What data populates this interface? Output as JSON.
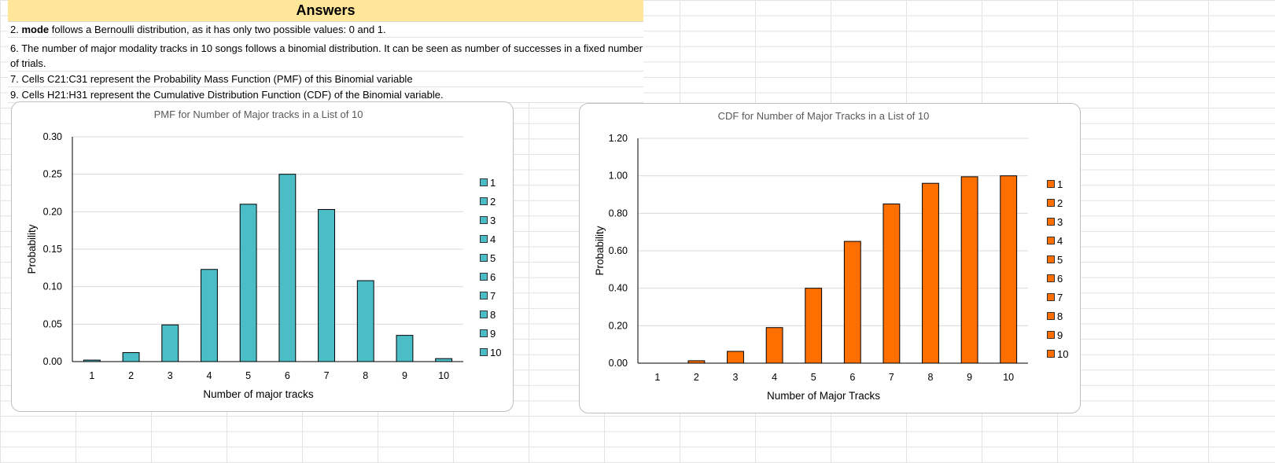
{
  "answers": {
    "title": "Answers",
    "line1_bold": "mode",
    "line1_prefix": "2. ",
    "line1_rest": " follows a Bernoulli distribution, as it has only two possible values: 0 and 1.",
    "line2": "6. The number of major modality tracks in 10 songs follows a binomial distribution. It can be seen as number of successes in a fixed number of trials.",
    "line3": "7. Cells C21:C31 represent the Probability Mass Function (PMF) of this Binomial variable",
    "line4": "9. Cells H21:H31 represent the Cumulative Distribution Function (CDF) of the Binomial variable."
  },
  "chart_data": [
    {
      "type": "bar",
      "title": "PMF for Number of Major tracks in a List of 10",
      "xlabel": "Number of major tracks",
      "ylabel": "Probability",
      "categories": [
        "1",
        "2",
        "3",
        "4",
        "5",
        "6",
        "7",
        "8",
        "9",
        "10"
      ],
      "values": [
        0.002,
        0.012,
        0.049,
        0.123,
        0.21,
        0.25,
        0.203,
        0.108,
        0.035,
        0.004
      ],
      "ylim": [
        0,
        0.3
      ],
      "yticks": [
        "0.00",
        "0.05",
        "0.10",
        "0.15",
        "0.20",
        "0.25",
        "0.30"
      ],
      "color": "#4bbdc6",
      "legend": [
        "1",
        "2",
        "3",
        "4",
        "5",
        "6",
        "7",
        "8",
        "9",
        "10"
      ],
      "legend_position": "right",
      "grid": true
    },
    {
      "type": "bar",
      "title": "CDF for Number of Major Tracks in a List of 10",
      "xlabel": "Number of Major Tracks",
      "ylabel": "Probability",
      "categories": [
        "1",
        "2",
        "3",
        "4",
        "5",
        "6",
        "7",
        "8",
        "9",
        "10"
      ],
      "values": [
        0.0,
        0.013,
        0.063,
        0.19,
        0.4,
        0.65,
        0.85,
        0.96,
        0.995,
        1.0
      ],
      "ylim": [
        0,
        1.2
      ],
      "yticks": [
        "0.00",
        "0.20",
        "0.40",
        "0.60",
        "0.80",
        "1.00",
        "1.20"
      ],
      "color": "#ff6f00",
      "legend": [
        "1",
        "2",
        "3",
        "4",
        "5",
        "6",
        "7",
        "8",
        "9",
        "10"
      ],
      "legend_position": "right",
      "grid": true
    }
  ]
}
